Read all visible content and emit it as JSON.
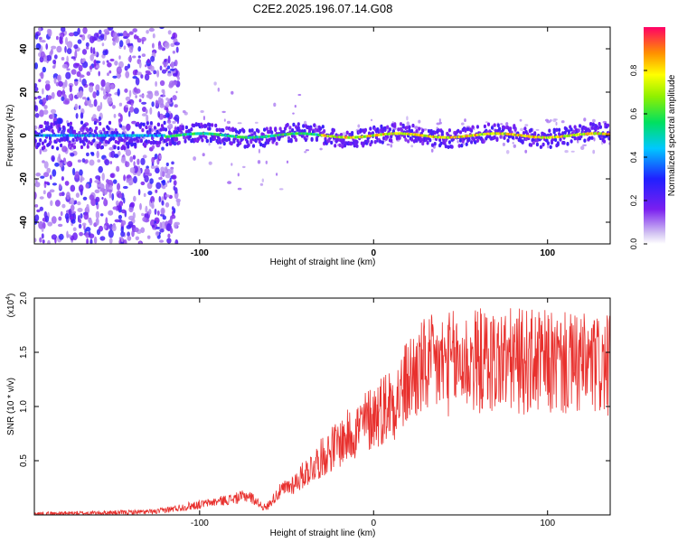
{
  "title": "C2E2.2025.196.07.14.G08",
  "chart_data": [
    {
      "type": "heatmap",
      "xlabel": "Height of straight line (km)",
      "ylabel": "Frequency (Hz)",
      "xlim": [
        -195,
        136
      ],
      "ylim": [
        -50,
        50
      ],
      "x_ticks": [
        -100,
        0,
        100
      ],
      "y_ticks": [
        -40,
        -20,
        0,
        20,
        40
      ],
      "colorbar": {
        "label": "Normalized spectral amplitude",
        "range": [
          0,
          1
        ],
        "ticks": [
          "0.0",
          "0.2",
          "0.4",
          "0.6",
          "0.8"
        ]
      },
      "ridge_frequency_hz": 0,
      "diffuse_region_upper_km": -120
    },
    {
      "type": "line",
      "series_color": "#e8302d",
      "xlabel": "Height of straight line (km)",
      "ylabel": "SNR (10 * v/v)",
      "y_multiplier": "(x10",
      "y_multiplier_exp": "4",
      "xlim": [
        -195,
        136
      ],
      "ylim": [
        0,
        2.0
      ],
      "x_ticks": [
        -100,
        0,
        100
      ],
      "y_ticks": [
        "0.5",
        "1.0",
        "1.5",
        "2.0"
      ],
      "envelope": {
        "x": [
          -195,
          -150,
          -125,
          -110,
          -95,
          -80,
          -72,
          -62,
          -55,
          -45,
          -35,
          -25,
          -15,
          -5,
          5,
          15,
          22,
          30,
          45,
          60,
          80,
          100,
          115,
          125,
          136
        ],
        "y": [
          0.01,
          0.02,
          0.03,
          0.07,
          0.11,
          0.15,
          0.18,
          0.06,
          0.2,
          0.3,
          0.45,
          0.6,
          0.72,
          0.85,
          0.98,
          1.1,
          1.28,
          1.36,
          1.4,
          1.42,
          1.42,
          1.4,
          1.38,
          1.38,
          1.36
        ]
      }
    }
  ]
}
